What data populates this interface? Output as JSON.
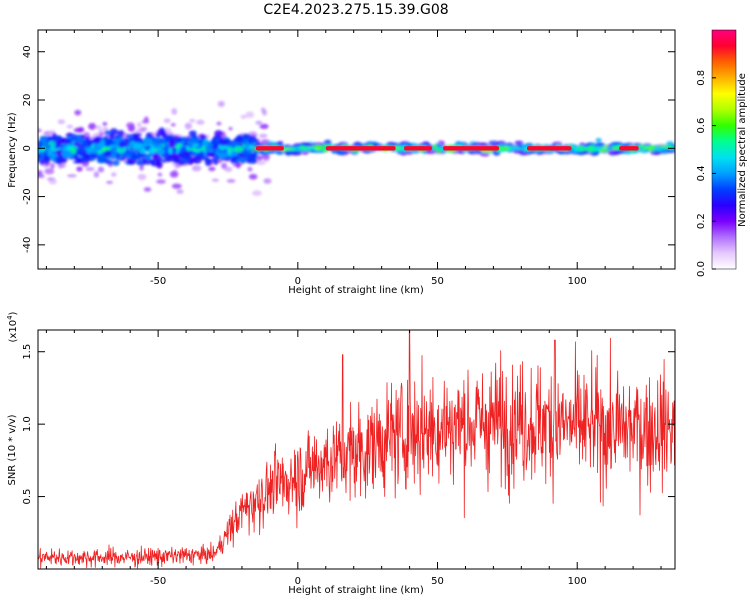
{
  "title": "C2E4.2023.275.15.39.G08",
  "chart_data": [
    {
      "type": "heatmap",
      "xlabel": "Height of straight line (km)",
      "ylabel": "Frequency (Hz)",
      "xlim": [
        -93,
        135
      ],
      "ylim": [
        -50,
        49
      ],
      "xticks": [
        -50,
        0,
        50,
        100
      ],
      "yticks": [
        -40,
        -20,
        0,
        20,
        40
      ],
      "colorbar": {
        "label": "Normalized spectral amplitude",
        "range": [
          0.0,
          1.0
        ],
        "ticks": [
          "0.0",
          "0.2",
          "0.4",
          "0.6",
          "0.8"
        ],
        "colormap": [
          "#ffffff",
          "#e6c8ff",
          "#b070ff",
          "#7a00ff",
          "#2a00ff",
          "#0040ff",
          "#00a0ff",
          "#00e0f0",
          "#00ff90",
          "#30ff00",
          "#b0ff00",
          "#ffff00",
          "#ffb000",
          "#ff6000",
          "#ff0030",
          "#ff0080"
        ]
      },
      "description_of_structure": {
        "broad_noise_region_km": [
          -93,
          -15
        ],
        "broad_noise_spread_hz": 8,
        "narrow_line_region_km": [
          -15,
          135
        ],
        "narrow_line_freq_hz": 0,
        "strong_segments_km": [
          [
            -15,
            -5
          ],
          [
            10,
            35
          ],
          [
            38,
            48
          ],
          [
            52,
            72
          ],
          [
            82,
            98
          ],
          [
            115,
            122
          ]
        ]
      }
    },
    {
      "type": "line",
      "color": "#ee2222",
      "xlabel": "Height of straight line (km)",
      "ylabel": "SNR (10 * v/v)",
      "y_scale_label": "(x10",
      "y_scale_exp": "4",
      "y_scale_close": ")",
      "xlim": [
        -93,
        135
      ],
      "ylim": [
        0,
        16500
      ],
      "xticks": [
        -50,
        0,
        50,
        100
      ],
      "yticks": [
        0.5,
        1.0,
        1.5
      ],
      "ytick_labels": [
        "0.5",
        "1.0",
        "1.5"
      ],
      "envelope": {
        "x": [
          -93,
          -60,
          -30,
          -25,
          -20,
          -10,
          0,
          10,
          20,
          30,
          40,
          50,
          60,
          70,
          80,
          90,
          100,
          110,
          120,
          135
        ],
        "y": [
          800,
          800,
          1000,
          2500,
          4000,
          5500,
          6500,
          7500,
          8000,
          8800,
          9500,
          9800,
          10000,
          10200,
          10200,
          10000,
          9900,
          9700,
          9700,
          9800
        ]
      },
      "peaks": [
        {
          "x": 40,
          "y": 16500
        },
        {
          "x": 92,
          "y": 15800
        },
        {
          "x": 16,
          "y": 14800
        }
      ]
    }
  ]
}
